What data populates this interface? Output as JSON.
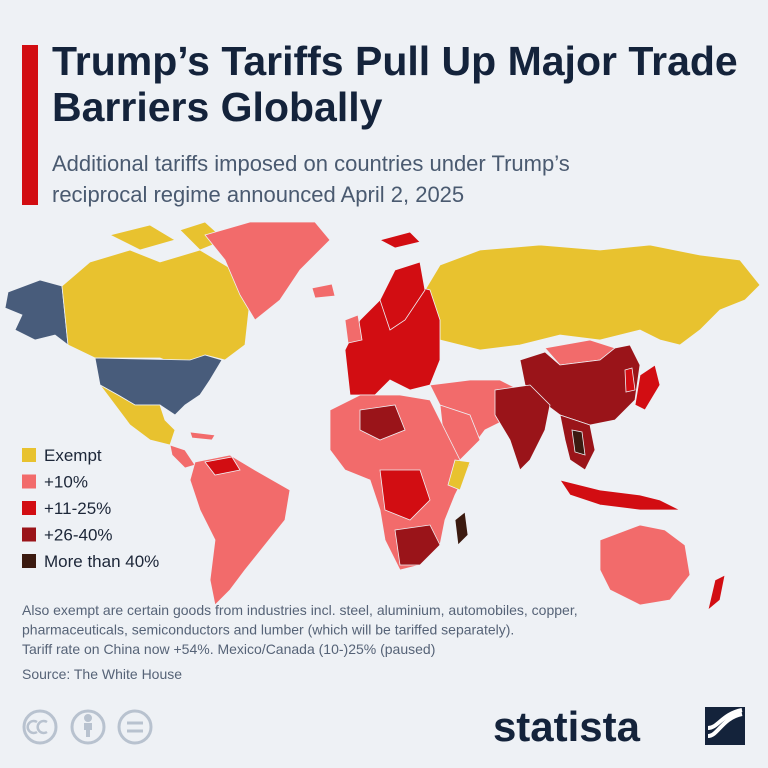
{
  "header": {
    "title": "Trump’s Tariffs Pull Up Major Trade Barriers Globally",
    "subtitle": "Additional tariffs imposed on countries under Trump’s reciprocal regime announced April 2, 2025"
  },
  "legend": {
    "items": [
      {
        "label": "Exempt",
        "color": "#e8c22f"
      },
      {
        "label": "+10%",
        "color": "#f26b6b"
      },
      {
        "label": "+11-25%",
        "color": "#d20d12"
      },
      {
        "label": "+26-40%",
        "color": "#9a1419"
      },
      {
        "label": "More than 40%",
        "color": "#3b1a10"
      }
    ]
  },
  "notes": [
    "Also exempt are certain goods from industries incl. steel, aluminium, automobiles, copper,",
    "pharmaceuticals, semiconductors and lumber (which will be tariffed separately).",
    "Tariff rate on China now +54%. Mexico/Canada (10-)25% (paused)"
  ],
  "source": "Source: The White House",
  "brand": "statista"
}
